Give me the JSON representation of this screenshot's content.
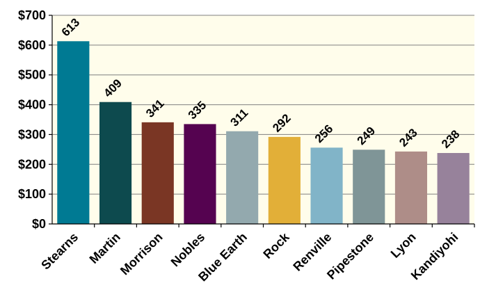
{
  "chart_data": {
    "type": "bar",
    "title": "",
    "xlabel": "",
    "ylabel": "",
    "categories": [
      "Stearns",
      "Martin",
      "Morrison",
      "Nobles",
      "Blue Earth",
      "Rock",
      "Renville",
      "Pipestone",
      "Lyon",
      "Kandiyohi"
    ],
    "values": [
      613,
      409,
      341,
      335,
      311,
      292,
      256,
      249,
      243,
      238
    ],
    "data_labels": [
      "613",
      "409",
      "341",
      "335",
      "311",
      "292",
      "256",
      "249",
      "243",
      "238"
    ],
    "ylim": [
      0,
      700
    ],
    "yticks": [
      0,
      100,
      200,
      300,
      400,
      500,
      600,
      700
    ],
    "ytick_labels": [
      "$0",
      "$100",
      "$200",
      "$300",
      "$400",
      "$500",
      "$600",
      "$700"
    ],
    "bar_colors": [
      "#007A93",
      "#0D4A4E",
      "#7A3624",
      "#550350",
      "#93A9AE",
      "#E2AF38",
      "#81B4C8",
      "#7F9597",
      "#AE8D88",
      "#97829B"
    ],
    "plot_background": "#FFFDEB",
    "grid": true,
    "legend": "none"
  }
}
